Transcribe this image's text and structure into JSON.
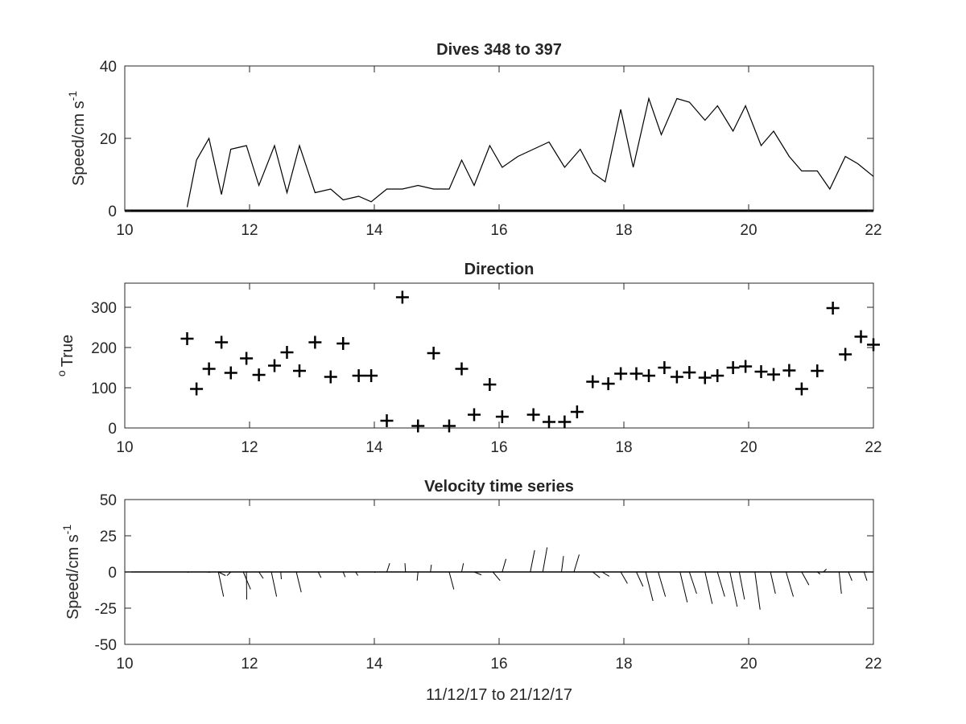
{
  "chart_data": [
    {
      "type": "line",
      "title": "Dives 348 to 397",
      "xlabel": "",
      "ylabel": "Speed/cm s",
      "ylabel_superscript": "-1",
      "xlim": [
        10,
        22
      ],
      "ylim": [
        0,
        40
      ],
      "xticks": [
        "10",
        "12",
        "14",
        "16",
        "18",
        "20",
        "22"
      ],
      "yticks": [
        "0",
        "20",
        "40"
      ],
      "grid": false,
      "series": [
        {
          "x": [
            11.0,
            11.15,
            11.35,
            11.55,
            11.7,
            11.95,
            12.15,
            12.4,
            12.6,
            12.8,
            13.05,
            13.3,
            13.5,
            13.75,
            13.95,
            14.2,
            14.45,
            14.7,
            14.95,
            15.2,
            15.4,
            15.6,
            15.85,
            16.05,
            16.3,
            16.55,
            16.8,
            17.05,
            17.3,
            17.5,
            17.7,
            17.95,
            18.15,
            18.4,
            18.6,
            18.85,
            19.05,
            19.3,
            19.5,
            19.75,
            19.95,
            20.2,
            20.4,
            20.65,
            20.85,
            21.1,
            21.3,
            21.55,
            21.75,
            22.0
          ],
          "y": [
            1,
            14,
            20,
            4.5,
            17,
            18,
            7,
            18,
            5,
            18,
            5,
            6,
            3,
            4,
            2.5,
            6,
            6,
            7,
            6,
            6,
            14,
            7,
            18,
            12,
            15,
            17,
            19,
            12,
            17,
            10.5,
            8,
            28,
            12,
            31,
            21,
            31,
            30,
            25,
            29,
            22,
            29,
            18,
            22,
            15,
            11,
            11,
            6,
            15,
            13,
            9.5
          ]
        }
      ],
      "baseline_y": 0
    },
    {
      "type": "scatter",
      "title": "Direction",
      "xlabel": "",
      "ylabel": "True",
      "ylabel_superscript": "o",
      "xlim": [
        10,
        22
      ],
      "ylim": [
        0,
        360
      ],
      "xticks": [
        "10",
        "12",
        "14",
        "16",
        "18",
        "20",
        "22"
      ],
      "yticks": [
        "0",
        "100",
        "200",
        "300"
      ],
      "marker": "+",
      "grid": false,
      "series": [
        {
          "x": [
            11.0,
            11.15,
            11.35,
            11.55,
            11.7,
            11.95,
            12.15,
            12.4,
            12.6,
            12.8,
            13.05,
            13.3,
            13.5,
            13.75,
            13.95,
            14.2,
            14.45,
            14.7,
            14.95,
            15.2,
            15.4,
            15.6,
            15.85,
            16.05,
            16.55,
            16.8,
            17.05,
            17.25,
            17.5,
            17.75,
            17.95,
            18.2,
            18.4,
            18.65,
            18.85,
            19.05,
            19.3,
            19.5,
            19.75,
            19.95,
            20.2,
            20.4,
            20.65,
            20.85,
            21.1,
            21.35,
            21.55,
            21.8,
            22.0
          ],
          "y": [
            222,
            97,
            147,
            213,
            137,
            173,
            132,
            155,
            188,
            142,
            213,
            127,
            210,
            130,
            130,
            18,
            325,
            5,
            186,
            5,
            147,
            33,
            108,
            28,
            33,
            15,
            15,
            40,
            115,
            110,
            135,
            135,
            130,
            150,
            127,
            138,
            125,
            130,
            150,
            153,
            140,
            133,
            143,
            97,
            142,
            298,
            183,
            227,
            207
          ]
        }
      ]
    },
    {
      "type": "line",
      "title": "Velocity time series",
      "xlabel": "11/12/17 to 21/12/17",
      "ylabel": "Speed/cm s",
      "ylabel_superscript": "-1",
      "xlim": [
        10,
        22
      ],
      "ylim": [
        -50,
        50
      ],
      "xticks": [
        "10",
        "12",
        "14",
        "16",
        "18",
        "20",
        "22"
      ],
      "yticks": [
        "-50",
        "-25",
        "0",
        "25",
        "50"
      ],
      "representation": "stick plot",
      "grid": false,
      "sticks": [
        {
          "x": 11.0,
          "u": 0.5,
          "v": -0.3
        },
        {
          "x": 11.3,
          "u": 1.5,
          "v": -0.2
        },
        {
          "x": 11.5,
          "u": 2.5,
          "v": -2.5
        },
        {
          "x": 11.5,
          "u": 1.8,
          "v": -17
        },
        {
          "x": 11.7,
          "u": -1.3,
          "v": -2.5
        },
        {
          "x": 11.95,
          "u": 0.1,
          "v": -19
        },
        {
          "x": 11.9,
          "u": 2.5,
          "v": -12
        },
        {
          "x": 12.15,
          "u": 1.5,
          "v": -4.5
        },
        {
          "x": 12.35,
          "u": 1.8,
          "v": -17
        },
        {
          "x": 12.5,
          "u": 0.2,
          "v": -5
        },
        {
          "x": 12.75,
          "u": 1.7,
          "v": -14
        },
        {
          "x": 13.1,
          "u": 1.0,
          "v": -4
        },
        {
          "x": 13.5,
          "u": 0.7,
          "v": -3.5
        },
        {
          "x": 13.7,
          "u": 0.8,
          "v": -2.5
        },
        {
          "x": 14.0,
          "u": 0.3,
          "v": -0.5
        },
        {
          "x": 14.2,
          "u": 1.0,
          "v": 6
        },
        {
          "x": 14.5,
          "u": -0.2,
          "v": 6
        },
        {
          "x": 14.7,
          "u": -0.3,
          "v": -6
        },
        {
          "x": 14.9,
          "u": 0.3,
          "v": 5
        },
        {
          "x": 15.2,
          "u": 1.6,
          "v": -12
        },
        {
          "x": 15.4,
          "u": 0.6,
          "v": 6
        },
        {
          "x": 15.6,
          "u": 2.5,
          "v": -2
        },
        {
          "x": 15.9,
          "u": 2.5,
          "v": -6
        },
        {
          "x": 16.05,
          "u": 1.3,
          "v": 9
        },
        {
          "x": 16.5,
          "u": 1.5,
          "v": 15
        },
        {
          "x": 16.7,
          "u": 1.5,
          "v": 17
        },
        {
          "x": 17.0,
          "u": 0.7,
          "v": 11
        },
        {
          "x": 17.2,
          "u": 1.8,
          "v": 12
        },
        {
          "x": 17.5,
          "u": 2.5,
          "v": -4
        },
        {
          "x": 17.65,
          "u": 2.5,
          "v": -3
        },
        {
          "x": 17.95,
          "u": 2.3,
          "v": -8
        },
        {
          "x": 18.2,
          "u": 2.3,
          "v": -10
        },
        {
          "x": 18.35,
          "u": 2.5,
          "v": -20
        },
        {
          "x": 18.55,
          "u": 2.5,
          "v": -17
        },
        {
          "x": 18.9,
          "u": 2.5,
          "v": -21
        },
        {
          "x": 19.05,
          "u": 2.5,
          "v": -15
        },
        {
          "x": 19.3,
          "u": 2.5,
          "v": -22
        },
        {
          "x": 19.5,
          "u": 2.5,
          "v": -17
        },
        {
          "x": 19.7,
          "u": 2.5,
          "v": -24
        },
        {
          "x": 19.85,
          "u": 1.8,
          "v": -19
        },
        {
          "x": 20.1,
          "u": 1.8,
          "v": -26
        },
        {
          "x": 20.35,
          "u": 1.7,
          "v": -15
        },
        {
          "x": 20.6,
          "u": 2.5,
          "v": -17
        },
        {
          "x": 20.85,
          "u": 2.5,
          "v": -9
        },
        {
          "x": 21.1,
          "u": 1.0,
          "v": -1.5
        },
        {
          "x": 21.2,
          "u": 1.0,
          "v": 2
        },
        {
          "x": 21.45,
          "u": 0.8,
          "v": -15
        },
        {
          "x": 21.6,
          "u": 1.2,
          "v": -6
        },
        {
          "x": 21.85,
          "u": 1.0,
          "v": -6
        }
      ]
    }
  ]
}
